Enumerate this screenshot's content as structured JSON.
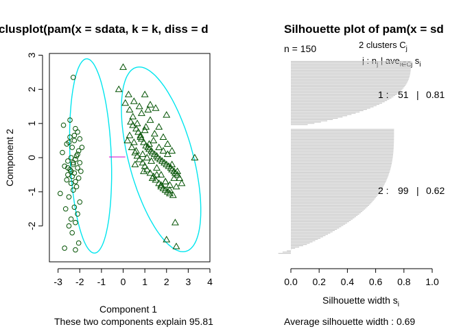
{
  "chart_data": [
    {
      "type": "scatter",
      "title": "clusplot(pam(x = sdata, k = k, diss = d",
      "xlabel": "Component 1",
      "ylabel": "Component 2",
      "subtitle": "These two components explain 95.81",
      "xlim": [
        -3.4,
        4.0
      ],
      "ylim": [
        -3.05,
        3.05
      ],
      "xticks": [
        "-3",
        "-2",
        "-1",
        "0",
        "1",
        "2",
        "3",
        "4"
      ],
      "yticks": [
        "-2",
        "-1",
        "0",
        "1",
        "2",
        "3"
      ],
      "colors": {
        "ellipse": "#00e5ee",
        "points": "#005000",
        "link": "#cc00cc"
      },
      "ellipses": [
        {
          "cluster": 1,
          "cx": -1.5,
          "cy": 0.05,
          "rx": 2.85,
          "ry": 0.95,
          "angle": -86
        },
        {
          "cluster": 2,
          "cx": 1.75,
          "cy": -0.05,
          "rx": 2.95,
          "ry": 1.4,
          "angle": -63
        }
      ],
      "link": {
        "x1": -0.65,
        "y1": 0.02,
        "x2": 0.1,
        "y2": 0.02
      },
      "series": [
        {
          "cluster": 1,
          "marker": "circle",
          "x": [
            -2.3,
            -2.1,
            -2.75,
            -2.45,
            -2.25,
            -2.0,
            -2.5,
            -2.6,
            -2.35,
            -2.05,
            -2.8,
            -2.15,
            -2.4,
            -2.2,
            -2.55,
            -2.0,
            -2.3,
            -2.7,
            -2.1,
            -2.45,
            -1.95,
            -2.25,
            -2.55,
            -2.35,
            -2.05,
            -2.6,
            -2.2,
            -2.4,
            -2.15,
            -2.3,
            -2.9,
            -2.5,
            -2.0,
            -2.25,
            -2.65,
            -2.1,
            -2.4,
            -2.2,
            -2.5,
            -2.35,
            -2.05,
            -2.7,
            -2.3,
            -1.9,
            -2.45,
            -2.2,
            -2.55,
            -2.1,
            -2.4,
            -2.25,
            -2.2
          ],
          "y": [
            2.35,
            0.75,
            0.95,
            1.1,
            0.65,
            0.55,
            0.45,
            0.4,
            0.3,
            0.2,
            0.15,
            0.05,
            0.0,
            -0.05,
            -0.1,
            -0.15,
            -0.2,
            -0.25,
            -0.3,
            -0.35,
            -0.4,
            -0.45,
            -0.5,
            -0.55,
            -0.6,
            -0.65,
            -0.7,
            -0.75,
            -0.85,
            -0.95,
            -1.05,
            -1.15,
            -1.3,
            -1.45,
            -1.5,
            -1.65,
            -1.8,
            -1.9,
            -2.0,
            -2.2,
            -2.5,
            -2.65,
            -0.15,
            0.3,
            0.6,
            0.85,
            -0.3,
            0.1,
            -0.4,
            0.5,
            -2.7
          ]
        },
        {
          "cluster": 2,
          "marker": "triangle",
          "x": [
            -0.2,
            0.0,
            0.25,
            0.5,
            1.0,
            1.25,
            1.5,
            2.0,
            3.3,
            2.4,
            2.0,
            2.45,
            0.1,
            0.3,
            0.35,
            0.45,
            0.6,
            0.7,
            0.8,
            0.85,
            0.95,
            1.05,
            1.15,
            1.2,
            1.3,
            1.35,
            1.45,
            1.55,
            1.6,
            1.7,
            1.8,
            1.9,
            2.0,
            2.1,
            2.2,
            2.25,
            2.35,
            2.4,
            2.5,
            2.6,
            2.7,
            0.2,
            0.4,
            0.55,
            0.65,
            0.75,
            0.9,
            1.0,
            1.1,
            1.25,
            1.4,
            1.5,
            1.65,
            1.75,
            1.85,
            1.95,
            2.05,
            2.15,
            2.3,
            2.45,
            0.3,
            0.5,
            0.6,
            0.8,
            0.9,
            1.0,
            1.1,
            1.2,
            1.3,
            1.4,
            1.55,
            1.65,
            1.75,
            1.85,
            1.95,
            2.05,
            2.15,
            2.25,
            2.35,
            2.5,
            0.45,
            0.65,
            0.85,
            1.05,
            1.25,
            1.45,
            1.65,
            1.85,
            2.05,
            2.25,
            0.55,
            0.95,
            1.35,
            1.75,
            2.15,
            0.75,
            1.15,
            1.55,
            1.95
          ],
          "y": [
            2.0,
            2.65,
            1.85,
            1.65,
            1.85,
            1.55,
            1.45,
            1.25,
            0.0,
            -1.9,
            -2.4,
            -2.6,
            1.6,
            1.4,
            1.05,
            0.95,
            0.85,
            0.75,
            0.65,
            0.55,
            0.45,
            0.35,
            0.3,
            0.25,
            0.2,
            0.15,
            0.1,
            0.05,
            0.0,
            -0.05,
            -0.1,
            -0.15,
            -0.2,
            -0.25,
            -0.3,
            -0.35,
            -0.4,
            -0.45,
            -0.5,
            -0.6,
            -0.75,
            0.5,
            0.3,
            0.15,
            0.05,
            -0.05,
            -0.15,
            -0.25,
            -0.35,
            -0.45,
            -0.55,
            -0.65,
            -0.75,
            -0.85,
            -0.9,
            -0.95,
            -1.0,
            -1.05,
            -1.1,
            -0.85,
            0.65,
            0.45,
            0.2,
            0.6,
            0.1,
            0.8,
            0.0,
            0.4,
            -0.1,
            0.5,
            -0.3,
            0.3,
            -0.5,
            0.2,
            -0.7,
            0.1,
            -0.8,
            -0.2,
            -0.6,
            -0.4,
            1.2,
            1.0,
            1.3,
            0.9,
            1.1,
            0.7,
            0.9,
            0.6,
            0.4,
            0.2,
            -0.2,
            -0.4,
            -0.6,
            -0.8,
            -0.95,
            1.5,
            1.4,
            -0.5,
            -0.7
          ]
        }
      ]
    },
    {
      "type": "bar",
      "orientation": "horizontal",
      "title": "Silhouette plot of pam(x = sd",
      "xlabel": "Silhouette width s",
      "xlabel_sub": "i",
      "xlim": [
        0,
        1
      ],
      "xticks": [
        "0.0",
        "0.2",
        "0.4",
        "0.6",
        "0.8",
        "1.0"
      ],
      "n_label": "n = 150",
      "legend_clusters_main": "2  clusters  C",
      "legend_clusters_sub": "j",
      "legend_header_j": "j :  n",
      "legend_header_nsub": "j",
      "legend_header_ave": " | ave",
      "legend_header_avesub": "i∈Cj",
      "legend_header_s": "  s",
      "legend_header_ssub": "i",
      "clusters": [
        {
          "label": "1 :",
          "n": "51",
          "sep": "|",
          "avg": "0.81",
          "count": 51,
          "max": 0.85,
          "min": 0.14,
          "drop": 0.3
        },
        {
          "label": "2 :",
          "n": "99",
          "sep": "|",
          "avg": "0.62",
          "count": 99,
          "max": 0.73,
          "min": -0.04,
          "drop": 0.7
        }
      ],
      "bar_color": "#bebebe",
      "average_label": "Average silhouette width :  0.69"
    }
  ]
}
